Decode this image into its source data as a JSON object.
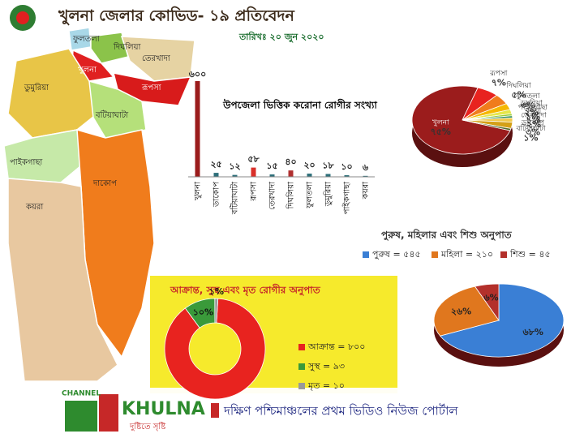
{
  "header": {
    "title": "খুলনা জেলার কোভিড- ১৯ প্রতিবেদন",
    "date": "তারিখঃ ২০ জুন ২০২০"
  },
  "map": {
    "labels": [
      "ফুলতলা",
      "দিঘলিয়া",
      "তেরখাদা",
      "খুলনা",
      "রূপসা",
      "ডুমুরিয়া",
      "বটিয়াঘাটা",
      "পাইকগাছা",
      "দাকোপ",
      "কয়রা"
    ]
  },
  "chart_data": [
    {
      "type": "bar",
      "title": "উপজেলা ভিত্তিক করোনা রোগীর সংখ্যা",
      "categories": [
        "খুলনা",
        "ডাকোপ",
        "বটিয়াঘাটা",
        "রূপসা",
        "তেরখাদা",
        "দিঘলিয়া",
        "ফুলতলা",
        "ডুমুরিয়া",
        "পাইকগাছা",
        "কয়রা"
      ],
      "values": [
        600,
        25,
        12,
        58,
        15,
        40,
        20,
        18,
        10,
        6
      ],
      "value_labels": [
        "৬০০",
        "২৫",
        "১২",
        "৫৮",
        "১৫",
        "৪০",
        "২০",
        "১৮",
        "১০",
        "৬"
      ],
      "colors": [
        "#9b1c1c",
        "#2e6f7a",
        "#2e6f7a",
        "#d9302a",
        "#2e6f7a",
        "#b03030",
        "#2e6f7a",
        "#2e6f7a",
        "#2e6f7a",
        "#2e6f7a"
      ],
      "ylim": [
        0,
        600
      ]
    },
    {
      "type": "pie",
      "categories": [
        "খুলনা",
        "রূপসা",
        "দিঘলিয়া",
        "ফুলতলা",
        "ডুমুরিয়া",
        "পাইকগাছা",
        "কয়রা",
        "তেরখাদা",
        "ডাকোপ",
        "বটিয়াঘাটা"
      ],
      "values": [
        75,
        7,
        5,
        3,
        2,
        1,
        1,
        2,
        3,
        1
      ],
      "value_labels": [
        "৭৫%",
        "৭%",
        "৫%",
        "৩%",
        "২%",
        "১%",
        "১%",
        "২%",
        "৩%",
        "১%"
      ],
      "colors": [
        "#9b1c1c",
        "#e8231f",
        "#f07c1c",
        "#f5b800",
        "#e6e64a",
        "#9acd32",
        "#2e8b57",
        "#f2c94c",
        "#d4a017",
        "#556b2f"
      ]
    },
    {
      "type": "pie",
      "title": "পুরুষ, মহিলার এবং শিশু অনুপাত",
      "categories": [
        "পুরুষ = ৫৪৫",
        "মহিলা = ২১০",
        "শিশু = ৪৫"
      ],
      "values": [
        68,
        26,
        6
      ],
      "value_labels": [
        "৬৮%",
        "২৬%",
        "৬%"
      ],
      "colors": [
        "#3a7fd5",
        "#e0771e",
        "#b3302b"
      ]
    },
    {
      "type": "donut",
      "title": "আক্রান্ত, সুস্থ এবং মৃত রোগীর অনুপাত",
      "categories": [
        "আক্রান্ত = ৮০০",
        "সুস্থ = ৯৩",
        "মৃত = ১০"
      ],
      "values": [
        89,
        10,
        1
      ],
      "value_labels": [
        null,
        "১০%",
        "১%"
      ],
      "colors": [
        "#e8231f",
        "#3a9a3a",
        "#999999"
      ]
    }
  ],
  "banner": {
    "channel": "CHANNEL",
    "brand": "KHULNA",
    "slogan": "দুষ্টিতে সৃষ্টি",
    "tagline": "দক্ষিণ পশ্চিমাঞ্চলের প্রথম ভিডিও নিউজ পোর্টাল"
  }
}
